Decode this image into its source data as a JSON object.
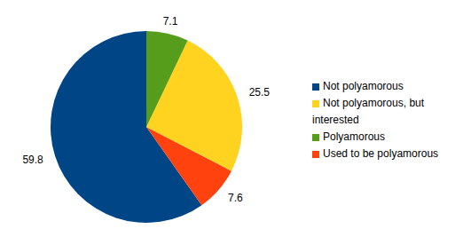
{
  "chart_data": {
    "type": "pie",
    "categories": [
      "Not polyamorous",
      "Used to be polyamorous",
      "Not polyamorous, but interested",
      "Polyamorous"
    ],
    "values": [
      59.8,
      7.6,
      25.5,
      7.1
    ],
    "colors": [
      "#004586",
      "#ff420e",
      "#ffd320",
      "#579d1c"
    ],
    "data_labels": true,
    "legend": "right"
  }
}
